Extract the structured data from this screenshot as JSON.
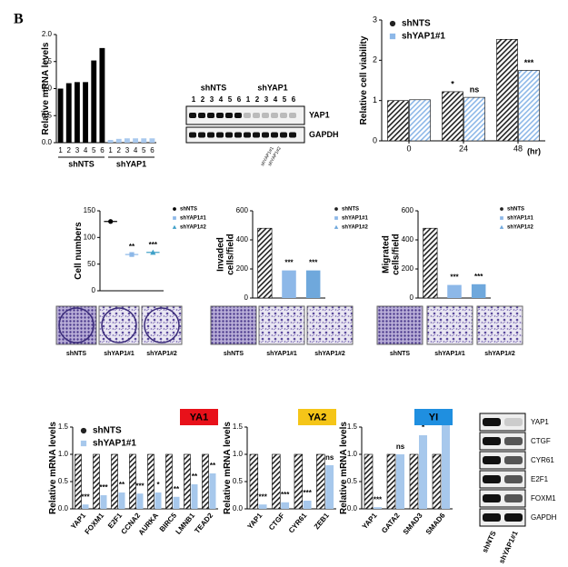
{
  "panel_label": "B",
  "chart_data": [
    {
      "type": "bar",
      "y_label": [
        "Relative mRNA levels"
      ],
      "categories": [
        "1",
        "2",
        "3",
        "4",
        "5",
        "6",
        "1",
        "2",
        "3",
        "4",
        "5",
        "6"
      ],
      "series": [
        {
          "name": "shNTS",
          "color": "#000000",
          "values": [
            1.0,
            1.1,
            1.12,
            1.12,
            1.52,
            1.75,
            null,
            null,
            null,
            null,
            null,
            null
          ]
        },
        {
          "name": "shYAP1",
          "color": "#a9c9ee",
          "values": [
            null,
            null,
            null,
            null,
            null,
            null,
            0.05,
            0.07,
            0.08,
            0.08,
            0.08,
            0.08
          ]
        }
      ],
      "ylim": [
        0,
        2
      ],
      "yticks": [
        {
          "value": 0,
          "label": "0.0"
        },
        {
          "value": 0.5,
          "label": "0.5"
        },
        {
          "value": 1,
          "label": "1.0"
        },
        {
          "value": 1.5,
          "label": "1.5"
        },
        {
          "value": 2,
          "label": "2.0"
        }
      ],
      "legend": "under-axis"
    },
    {
      "type": "bar",
      "y_label": [
        "Relative cell viability"
      ],
      "categories": [
        "0",
        "24",
        "48"
      ],
      "x_label": "(hr)",
      "series": [
        {
          "name": "shNTS",
          "color": "#222222",
          "hatch": true,
          "marker": "circle",
          "values": [
            1.0,
            1.22,
            2.52
          ],
          "annotations": [
            null,
            "*",
            null
          ]
        },
        {
          "name": "shYAP1#1",
          "color": "#8db8e8",
          "hatch": true,
          "marker": "square",
          "values": [
            1.02,
            1.08,
            1.75
          ],
          "annotations": [
            null,
            "ns",
            "***"
          ]
        }
      ],
      "ylim": [
        0,
        3
      ],
      "yticks": [
        0,
        1,
        2,
        3
      ],
      "legend": "upper left"
    },
    {
      "type": "dot",
      "y_label": [
        "Cell numbers"
      ],
      "series": [
        {
          "name": "shNTS",
          "color": "#000000",
          "marker": "circle",
          "values": [
            130
          ],
          "annotations": [
            null
          ]
        },
        {
          "name": "shYAP1#1",
          "color": "#8db8e8",
          "marker": "square",
          "values": [
            68
          ],
          "annotations": [
            "**"
          ]
        },
        {
          "name": "shYAP1#2",
          "color": "#3fa0c8",
          "marker": "triangle",
          "values": [
            72
          ],
          "annotations": [
            "***"
          ]
        }
      ],
      "ylim": [
        0,
        150
      ],
      "yticks": [
        0,
        50,
        100,
        150
      ],
      "legend": "right"
    },
    {
      "type": "bar",
      "y_label": [
        "Invaded",
        "cells/field"
      ],
      "series": [
        {
          "name": "shNTS",
          "color": "#222222",
          "hatch": true,
          "marker": "circle",
          "values": [
            480
          ],
          "annotations": [
            null
          ]
        },
        {
          "name": "shYAP1#1",
          "color": "#8db8e8",
          "marker": "square",
          "values": [
            190
          ],
          "annotations": [
            "***"
          ]
        },
        {
          "name": "shYAP1#2",
          "color": "#6fa8dc",
          "marker": "triangle",
          "values": [
            190
          ],
          "annotations": [
            "***"
          ]
        }
      ],
      "ylim": [
        0,
        600
      ],
      "yticks": [
        0,
        200,
        400,
        600
      ],
      "legend": "right"
    },
    {
      "type": "bar",
      "y_label": [
        "Migrated",
        "cells/field"
      ],
      "series": [
        {
          "name": "shNTS",
          "color": "#222222",
          "hatch": true,
          "marker": "circle",
          "values": [
            480
          ],
          "annotations": [
            null
          ]
        },
        {
          "name": "shYAP1#1",
          "color": "#8db8e8",
          "marker": "square",
          "values": [
            90
          ],
          "annotations": [
            "***"
          ]
        },
        {
          "name": "shYAP1#2",
          "color": "#6fa8dc",
          "marker": "triangle",
          "values": [
            95
          ],
          "annotations": [
            "***"
          ]
        }
      ],
      "ylim": [
        0,
        600
      ],
      "yticks": [
        0,
        200,
        400,
        600
      ],
      "legend": "right"
    },
    {
      "type": "bar",
      "y_label": [
        "Relative mRNA levels"
      ],
      "badge": {
        "text": "YA1",
        "color": "#e8111a"
      },
      "x_rotate": true,
      "categories": [
        "YAP1",
        "FOXM1",
        "E2F1",
        "CCNA2",
        "AURKA",
        "BIRC5",
        "LMNB1",
        "TEAD2"
      ],
      "series": [
        {
          "name": "shNTS",
          "color": "#222222",
          "hatch": true,
          "marker": "circle",
          "values": [
            1,
            1,
            1,
            1,
            1,
            1,
            1,
            1
          ]
        },
        {
          "name": "shYAP1#1",
          "color": "#a7c8ec",
          "marker": "square",
          "values": [
            0.08,
            0.25,
            0.3,
            0.28,
            0.3,
            0.22,
            0.45,
            0.65
          ],
          "annotations": [
            "***",
            "***",
            "**",
            "***",
            "*",
            "**",
            "**",
            "**"
          ]
        }
      ],
      "ylim": [
        0,
        1.5
      ],
      "yticks": [
        {
          "value": 0,
          "label": "0.0"
        },
        {
          "value": 0.5,
          "label": "0.5"
        },
        {
          "value": 1,
          "label": "1.0"
        },
        {
          "value": 1.5,
          "label": "1.5"
        }
      ],
      "legend": "upper left"
    },
    {
      "type": "bar",
      "y_label": [
        "Relative mRNA levels"
      ],
      "badge": {
        "text": "YA2",
        "color": "#f5c518"
      },
      "x_rotate": true,
      "categories": [
        "YAP1",
        "CTGF",
        "CYR61",
        "ZEB1"
      ],
      "series": [
        {
          "name": "shNTS",
          "color": "#222222",
          "hatch": true,
          "values": [
            1,
            1,
            1,
            1
          ]
        },
        {
          "name": "shYAP1#1",
          "color": "#a7c8ec",
          "values": [
            0.08,
            0.12,
            0.15,
            0.8
          ],
          "annotations": [
            "***",
            "***",
            "***",
            "ns"
          ]
        }
      ],
      "ylim": [
        0,
        1.5
      ],
      "yticks": [
        {
          "value": 0,
          "label": "0.0"
        },
        {
          "value": 0.5,
          "label": "0.5"
        },
        {
          "value": 1,
          "label": "1.0"
        },
        {
          "value": 1.5,
          "label": "1.5"
        }
      ]
    },
    {
      "type": "bar",
      "y_label": [
        "Relative mRNA levels"
      ],
      "badge": {
        "text": "YI",
        "color": "#1f8fe0"
      },
      "x_rotate": true,
      "categories": [
        "YAP1",
        "GATA2",
        "SMAD3",
        "SMAD6"
      ],
      "series": [
        {
          "name": "shNTS",
          "color": "#222222",
          "hatch": true,
          "values": [
            1,
            1,
            1,
            1
          ]
        },
        {
          "name": "shYAP1#1",
          "color": "#a7c8ec",
          "values": [
            0.03,
            1.0,
            1.35,
            1.55
          ],
          "annotations": [
            "***",
            "ns",
            "*",
            "*"
          ]
        }
      ],
      "ylim": [
        0,
        1.5
      ],
      "yticks": [
        {
          "value": 0,
          "label": "0.0"
        },
        {
          "value": 0.5,
          "label": "0.5"
        },
        {
          "value": 1,
          "label": "1.0"
        },
        {
          "value": 1.5,
          "label": "1.5"
        }
      ]
    }
  ],
  "blot1": {
    "groups": [
      "shNTS",
      "shYAP1"
    ],
    "lanes": [
      "1",
      "2",
      "3",
      "4",
      "5",
      "6",
      "1",
      "2",
      "3",
      "4",
      "5",
      "6"
    ],
    "rows": [
      "YAP1",
      "GAPDH"
    ],
    "notes": [
      "shYAP1#1",
      "shYAP1#2"
    ]
  },
  "images": [
    [
      "shNTS",
      "shYAP1#1",
      "shYAP1#2"
    ],
    [
      "shNTS",
      "shYAP1#1",
      "shYAP1#2"
    ],
    [
      "shNTS",
      "shYAP1#1",
      "shYAP1#2"
    ]
  ],
  "blot2": {
    "rows": [
      "YAP1",
      "CTGF",
      "CYR61",
      "E2F1",
      "FOXM1",
      "GAPDH"
    ],
    "columns": [
      "shNTS",
      "shYAP1#1"
    ]
  }
}
